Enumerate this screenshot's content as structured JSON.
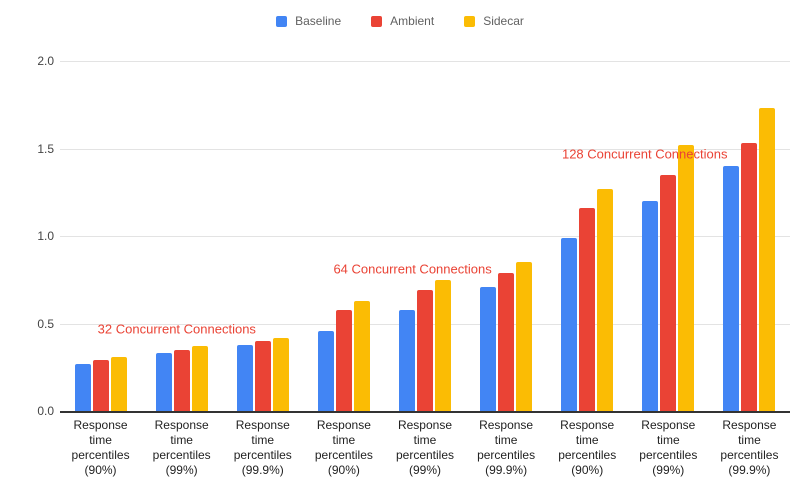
{
  "chart_data": {
    "type": "bar",
    "title": "",
    "categories": [
      "Response time percentiles (90%)",
      "Response time percentiles (99%)",
      "Response time percentiles (99.9%)",
      "Response time percentiles (90%)",
      "Response time percentiles (99%)",
      "Response time percentiles (99.9%)",
      "Response time percentiles (90%)",
      "Response time percentiles (99%)",
      "Response time percentiles (99.9%)"
    ],
    "series": [
      {
        "name": "Baseline",
        "color": "#4285F4",
        "values": [
          0.27,
          0.33,
          0.38,
          0.46,
          0.58,
          0.71,
          0.99,
          1.2,
          1.4
        ]
      },
      {
        "name": "Ambient",
        "color": "#EA4335",
        "values": [
          0.29,
          0.35,
          0.4,
          0.58,
          0.69,
          0.79,
          1.16,
          1.35,
          1.53
        ]
      },
      {
        "name": "Sidecar",
        "color": "#FBBC04",
        "values": [
          0.31,
          0.37,
          0.42,
          0.63,
          0.75,
          0.85,
          1.27,
          1.52,
          1.73
        ]
      }
    ],
    "ylim": [
      0.0,
      2.0
    ],
    "yticks": [
      0.0,
      0.5,
      1.0,
      1.5,
      2.0
    ],
    "xlabel": "",
    "ylabel": "",
    "grid": true,
    "legend_position": "top",
    "annotations": [
      {
        "text": "32 Concurrent Connections",
        "color": "#EA4335",
        "x_pct": 16.0,
        "y_value": 0.47
      },
      {
        "text": "64 Concurrent Connections",
        "color": "#EA4335",
        "x_pct": 48.3,
        "y_value": 0.81
      },
      {
        "text": "128 Concurrent Connections",
        "color": "#EA4335",
        "x_pct": 80.1,
        "y_value": 1.47
      }
    ]
  }
}
